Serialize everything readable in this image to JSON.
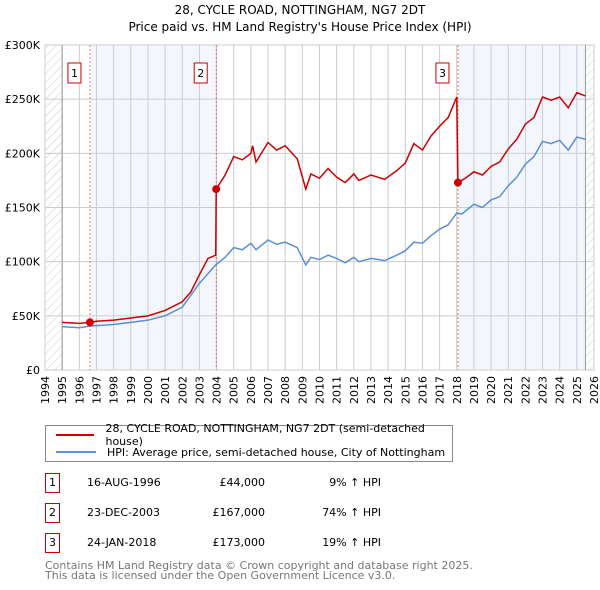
{
  "chart_data": {
    "type": "line",
    "title": "28, CYCLE ROAD, NOTTINGHAM, NG7 2DT",
    "subtitle": "Price paid vs. HM Land Registry's House Price Index (HPI)",
    "xlim": [
      1994,
      2026
    ],
    "ylim": [
      0,
      300000
    ],
    "x_ticks": [
      "1994",
      "1995",
      "1996",
      "1997",
      "1998",
      "1999",
      "2000",
      "2001",
      "2002",
      "2003",
      "2004",
      "2005",
      "2006",
      "2007",
      "2008",
      "2009",
      "2010",
      "2011",
      "2012",
      "2013",
      "2014",
      "2015",
      "2016",
      "2017",
      "2018",
      "2019",
      "2020",
      "2021",
      "2022",
      "2023",
      "2024",
      "2025",
      "2026"
    ],
    "y_ticks": [
      {
        "v": 0,
        "label": "£0"
      },
      {
        "v": 50000,
        "label": "£50K"
      },
      {
        "v": 100000,
        "label": "£100K"
      },
      {
        "v": 150000,
        "label": "£150K"
      },
      {
        "v": 200000,
        "label": "£200K"
      },
      {
        "v": 250000,
        "label": "£250K"
      },
      {
        "v": 300000,
        "label": "£300K"
      }
    ],
    "grid": true,
    "data_start": 1995,
    "data_end": 2025.5,
    "series": [
      {
        "name": "28, CYCLE ROAD, NOTTINGHAM, NG7 2DT (semi-detached house)",
        "color": "#cc0000",
        "x": [
          1995,
          1996,
          1996.62,
          1997,
          1998,
          1999,
          2000,
          2001,
          2002,
          2002.5,
          2003,
          2003.5,
          2003.95,
          2003.98,
          2004.5,
          2005,
          2005.5,
          2006,
          2006.1,
          2006.3,
          2007,
          2007.5,
          2008,
          2008.7,
          2009.2,
          2009.5,
          2010,
          2010.5,
          2011,
          2011.5,
          2012,
          2012.3,
          2013,
          2013.8,
          2014.5,
          2015,
          2015.5,
          2016,
          2016.5,
          2017,
          2017.5,
          2018.0,
          2018.07,
          2018.5,
          2019,
          2019.5,
          2020,
          2020.5,
          2021,
          2021.5,
          2022,
          2022.5,
          2023,
          2023.5,
          2024,
          2024.5,
          2025,
          2025.5
        ],
        "y": [
          44,
          43,
          44,
          45,
          46,
          48,
          50,
          55,
          63,
          72,
          88,
          103,
          106,
          167,
          180,
          197,
          194,
          200,
          207,
          192,
          210,
          203,
          207,
          195,
          167,
          181,
          177,
          186,
          178,
          173,
          181,
          175,
          180,
          176,
          184,
          191,
          209,
          203,
          216,
          225,
          233,
          252,
          173,
          177,
          183,
          180,
          188,
          192,
          204,
          213,
          227,
          233,
          252,
          249,
          252,
          242,
          256,
          253
        ]
      },
      {
        "name": "HPI: Average price, semi-detached house, City of Nottingham",
        "color": "#5b8fd4",
        "x": [
          1995,
          1996,
          1996.62,
          1997,
          1998,
          1999,
          2000,
          2001,
          2002,
          2003,
          2003.95,
          2004.5,
          2005,
          2005.5,
          2006,
          2006.3,
          2007,
          2007.5,
          2008,
          2008.7,
          2009.2,
          2009.5,
          2010,
          2010.5,
          2011,
          2011.5,
          2012,
          2012.3,
          2013,
          2013.8,
          2014.5,
          2015,
          2015.5,
          2016,
          2016.5,
          2017,
          2017.5,
          2018,
          2018.3,
          2019,
          2019.5,
          2020,
          2020.5,
          2021,
          2021.5,
          2022,
          2022.5,
          2023,
          2023.5,
          2024,
          2024.5,
          2025,
          2025.5
        ],
        "y": [
          40,
          39,
          40.5,
          41,
          42,
          44,
          46,
          50,
          58,
          80,
          97,
          104,
          113,
          111,
          117,
          111,
          120,
          116,
          118,
          113,
          97,
          104,
          102,
          106,
          103,
          99,
          104,
          100,
          103,
          101,
          106,
          110,
          118,
          117,
          124,
          130,
          134,
          145,
          144,
          153,
          150,
          157,
          160,
          170,
          178,
          190,
          197,
          211,
          209,
          212,
          203,
          215,
          213
        ]
      }
    ],
    "sales": [
      {
        "num": "1",
        "x": 1996.62,
        "price": 44000,
        "date": "16-AUG-1996",
        "price_label": "£44,000",
        "hpi": "9% ↑ HPI"
      },
      {
        "num": "2",
        "x": 2003.98,
        "price": 167000,
        "date": "23-DEC-2003",
        "price_label": "£167,000",
        "hpi": "74% ↑ HPI"
      },
      {
        "num": "3",
        "x": 2018.07,
        "price": 173000,
        "date": "24-JAN-2018",
        "price_label": "£173,000",
        "hpi": "19% ↑ HPI"
      }
    ]
  },
  "footer": {
    "line1": "Contains HM Land Registry data © Crown copyright and database right 2025.",
    "line2": "This data is licensed under the Open Government Licence v3.0."
  }
}
